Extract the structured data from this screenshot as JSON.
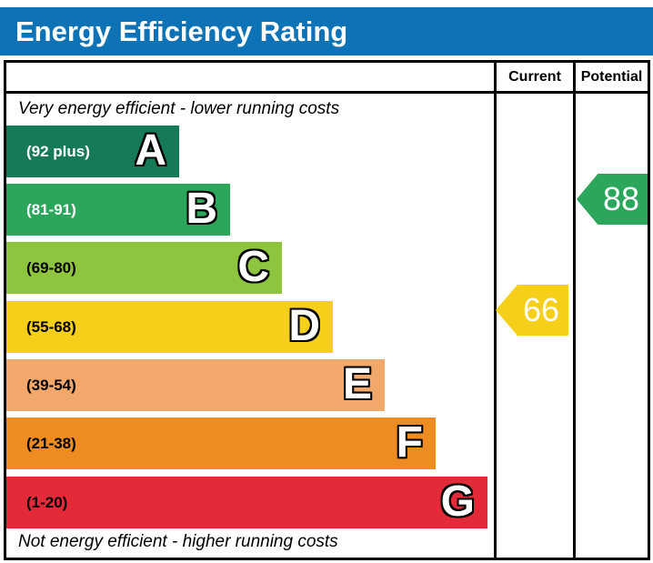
{
  "title": "Energy Efficiency Rating",
  "columns": {
    "current": "Current",
    "potential": "Potential"
  },
  "top_caption": "Very energy efficient - lower running costs",
  "bottom_caption": "Not energy efficient - higher running costs",
  "bands": [
    {
      "letter": "A",
      "range": "(92 plus)",
      "color": "#177a57",
      "label_color": "#ffffff"
    },
    {
      "letter": "B",
      "range": "(81-91)",
      "color": "#2ca65a",
      "label_color": "#ffffff"
    },
    {
      "letter": "C",
      "range": "(69-80)",
      "color": "#8dc53e",
      "label_color": "#000000"
    },
    {
      "letter": "D",
      "range": "(55-68)",
      "color": "#f5cf1a",
      "label_color": "#000000"
    },
    {
      "letter": "E",
      "range": "(39-54)",
      "color": "#f2a86b",
      "label_color": "#000000"
    },
    {
      "letter": "F",
      "range": "(21-38)",
      "color": "#ee8c21",
      "label_color": "#000000"
    },
    {
      "letter": "G",
      "range": "(1-20)",
      "color": "#e22a38",
      "label_color": "#000000"
    }
  ],
  "current": {
    "value": "66",
    "color": "#f5cf1a",
    "band": "D"
  },
  "potential": {
    "value": "88",
    "color": "#2ca65a",
    "band": "B"
  },
  "theme": {
    "header_blue": "#0e72b6",
    "border_color": "#000000"
  },
  "chart_data": {
    "type": "bar",
    "title": "Energy Efficiency Rating",
    "categories": [
      "A",
      "B",
      "C",
      "D",
      "E",
      "F",
      "G"
    ],
    "ranges": [
      "92 plus",
      "81-91",
      "69-80",
      "55-68",
      "39-54",
      "21-38",
      "1-20"
    ],
    "band_colors": [
      "#177a57",
      "#2ca65a",
      "#8dc53e",
      "#f5cf1a",
      "#f2a86b",
      "#ee8c21",
      "#e22a38"
    ],
    "columns": [
      "Current",
      "Potential"
    ],
    "markers": {
      "current": 66,
      "potential": 88
    },
    "current_band": "D",
    "potential_band": "B",
    "annotations": [
      "Very energy efficient - lower running costs",
      "Not energy efficient - higher running costs"
    ],
    "legend_position": "none",
    "grid": false
  }
}
